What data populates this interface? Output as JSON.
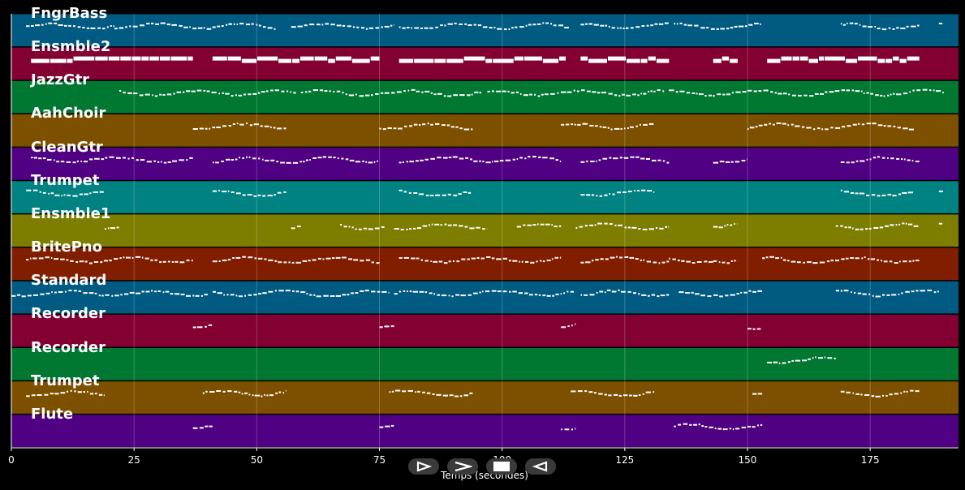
{
  "plot": {
    "xlabel": "Temps (secondes)",
    "x_range": [
      0,
      193
    ],
    "x_ticks": [
      "0",
      "25",
      "50",
      "75",
      "100",
      "125",
      "150",
      "175"
    ],
    "grid": true
  },
  "tracks": [
    {
      "label": "FngrBass",
      "color": "#005a82",
      "segments": [
        [
          3,
          21
        ],
        [
          21,
          38
        ],
        [
          38,
          54
        ],
        [
          57,
          78
        ],
        [
          79,
          114
        ],
        [
          116,
          134
        ],
        [
          135,
          153
        ],
        [
          169,
          185
        ],
        [
          189,
          190
        ]
      ]
    },
    {
      "label": "Ensmble2",
      "color": "#820032",
      "segments": [
        [
          4,
          37
        ],
        [
          41,
          75
        ],
        [
          79,
          113
        ],
        [
          116,
          134
        ],
        [
          143,
          148
        ],
        [
          154,
          185
        ]
      ]
    },
    {
      "label": "JazzGtr",
      "color": "#007832",
      "segments": [
        [
          22,
          58
        ],
        [
          59,
          96
        ],
        [
          97,
          133
        ],
        [
          134,
          190
        ]
      ]
    },
    {
      "label": "AahChoir",
      "color": "#7d5000",
      "segments": [
        [
          37,
          56
        ],
        [
          75,
          94
        ],
        [
          112,
          131
        ],
        [
          150,
          184
        ]
      ]
    },
    {
      "label": "CleanGtr",
      "color": "#500082",
      "segments": [
        [
          4,
          37
        ],
        [
          41,
          75
        ],
        [
          79,
          112
        ],
        [
          116,
          134
        ],
        [
          143,
          150
        ],
        [
          169,
          185
        ]
      ]
    },
    {
      "label": "Trumpet",
      "color": "#008282",
      "segments": [
        [
          3,
          19
        ],
        [
          41,
          56
        ],
        [
          79,
          94
        ],
        [
          116,
          131
        ],
        [
          169,
          184
        ],
        [
          189,
          190
        ]
      ]
    },
    {
      "label": "Ensmble1",
      "color": "#7d7d00",
      "segments": [
        [
          19,
          22
        ],
        [
          57,
          59
        ],
        [
          67,
          76
        ],
        [
          78,
          97
        ],
        [
          103,
          112
        ],
        [
          115,
          134
        ],
        [
          143,
          148
        ],
        [
          168,
          185
        ],
        [
          189,
          190
        ]
      ]
    },
    {
      "label": "BritePno",
      "color": "#821e00",
      "segments": [
        [
          3,
          37
        ],
        [
          41,
          75
        ],
        [
          79,
          112
        ],
        [
          116,
          134
        ],
        [
          134,
          143
        ],
        [
          143,
          148
        ],
        [
          153,
          185
        ]
      ]
    },
    {
      "label": "Standard",
      "color": "#005a82",
      "segments": [
        [
          0,
          40
        ],
        [
          41,
          77
        ],
        [
          78,
          115
        ],
        [
          116,
          134
        ],
        [
          136,
          153
        ],
        [
          168,
          189
        ]
      ]
    },
    {
      "label": "Recorder",
      "color": "#820032",
      "segments": [
        [
          37,
          41
        ],
        [
          75,
          78
        ],
        [
          112,
          115
        ],
        [
          150,
          153
        ]
      ]
    },
    {
      "label": "Recorder",
      "color": "#007832",
      "segments": [
        [
          154,
          168
        ]
      ]
    },
    {
      "label": "Trumpet",
      "color": "#7d5000",
      "segments": [
        [
          3,
          19
        ],
        [
          39,
          56
        ],
        [
          77,
          94
        ],
        [
          114,
          131
        ],
        [
          151,
          153
        ],
        [
          169,
          185
        ]
      ]
    },
    {
      "label": "Flute",
      "color": "#500082",
      "segments": [
        [
          37,
          41
        ],
        [
          75,
          78
        ],
        [
          112,
          115
        ],
        [
          135,
          153
        ]
      ]
    }
  ],
  "controls": [
    {
      "name": "play-outline-icon",
      "label": "play"
    },
    {
      "name": "fast-forward-icon",
      "label": "forward"
    },
    {
      "name": "stop-icon",
      "label": "stop"
    },
    {
      "name": "rewind-icon",
      "label": "back"
    }
  ]
}
